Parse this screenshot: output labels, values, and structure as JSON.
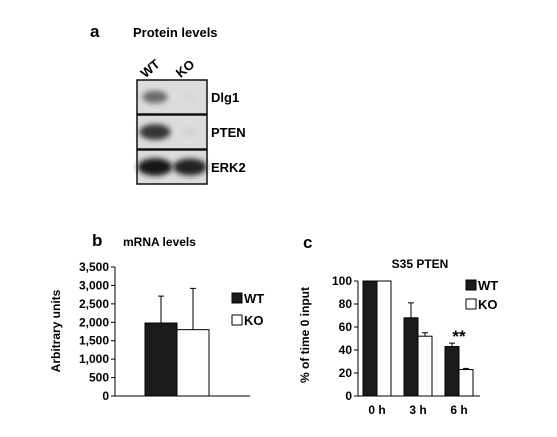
{
  "panel_a": {
    "letter": "a",
    "title": "Protein levels",
    "lanes": [
      "WT",
      "KO"
    ],
    "blots": [
      {
        "label": "Dlg1",
        "band_intensity": [
          0.55,
          0.05
        ]
      },
      {
        "label": "PTEN",
        "band_intensity": [
          0.8,
          0.08
        ]
      },
      {
        "label": "ERK2",
        "band_intensity": [
          0.95,
          0.9
        ]
      }
    ]
  },
  "panel_b": {
    "letter": "b"
  },
  "panel_c": {
    "letter": "c",
    "significance": "**"
  },
  "chart_data": [
    {
      "type": "bar",
      "title": "mRNA levels",
      "ylabel": "Arbitrary units",
      "xlabel": "",
      "ylim": [
        0,
        3500
      ],
      "yticks": [
        0,
        500,
        1000,
        1500,
        2000,
        2500,
        3000,
        3500
      ],
      "ytick_labels": [
        "0",
        "500",
        "1,000",
        "1,500",
        "2,000",
        "2,500",
        "3,000",
        "3,500"
      ],
      "categories": [
        ""
      ],
      "series": [
        {
          "name": "WT",
          "values": [
            1980
          ],
          "error": [
            730
          ],
          "color": "#1a1a1a"
        },
        {
          "name": "KO",
          "values": [
            1800
          ],
          "error": [
            1120
          ],
          "color": "#ffffff"
        }
      ],
      "legend_position": "right"
    },
    {
      "type": "bar",
      "title": "S35 PTEN",
      "ylabel": "% of time 0 input",
      "xlabel": "",
      "ylim": [
        0,
        100
      ],
      "yticks": [
        0,
        20,
        40,
        60,
        80,
        100
      ],
      "ytick_labels": [
        "0",
        "20",
        "40",
        "60",
        "80",
        "100"
      ],
      "categories": [
        "0 h",
        "3 h",
        "6 h"
      ],
      "series": [
        {
          "name": "WT",
          "values": [
            100,
            68,
            43
          ],
          "error": [
            0,
            13,
            3
          ],
          "color": "#1a1a1a"
        },
        {
          "name": "KO",
          "values": [
            100,
            52,
            23
          ],
          "error": [
            0,
            3,
            1
          ],
          "color": "#ffffff"
        }
      ],
      "legend_position": "right"
    }
  ]
}
